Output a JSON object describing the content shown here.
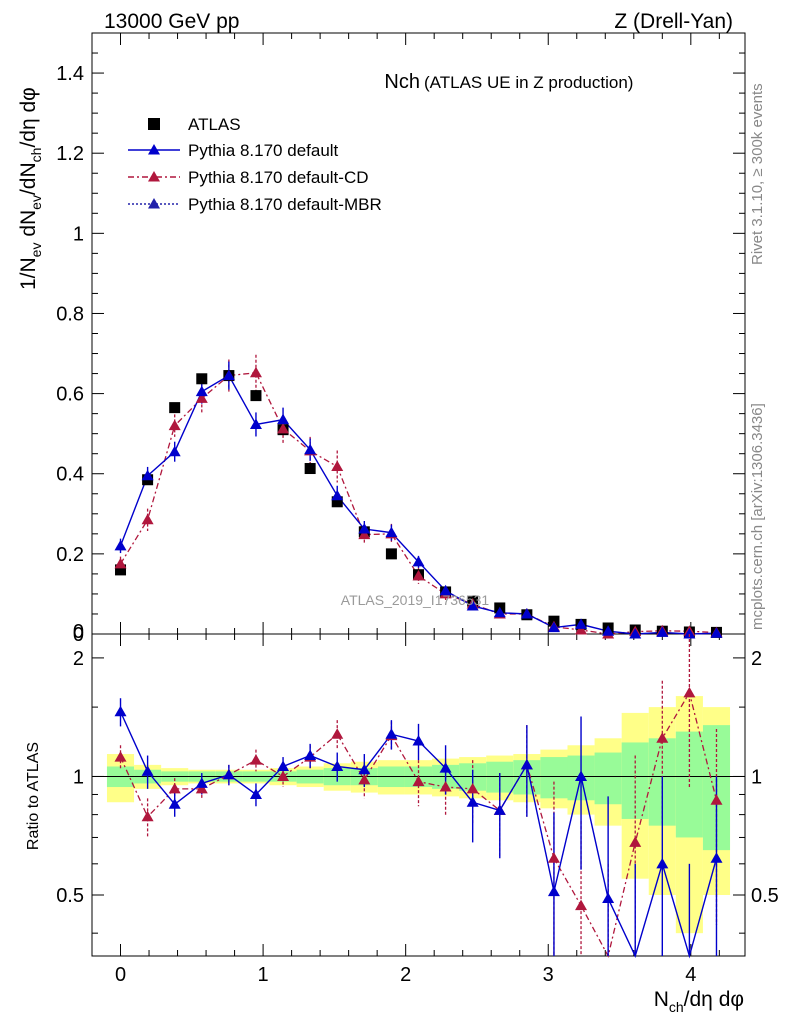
{
  "header": {
    "energy": "13000 GeV pp",
    "process": "Z (Drell-Yan)"
  },
  "side_text": {
    "rivet": "Rivet 3.1.10, ≥ 300k events",
    "mcplots": "mcplots.cern.ch [arXiv:1306.3436]"
  },
  "chart_data": {
    "type": "scatter",
    "title_main": "Nch",
    "title_sub": "(ATLAS UE in Z production)",
    "watermark": "ATLAS_2019_I1736531",
    "xlabel": "N_ch/dη dφ",
    "ylabel": "1/N_ev dN_ev/dN_ch/dη dφ",
    "xlim": [
      -0.2,
      4.38
    ],
    "ylim": [
      0,
      1.5
    ],
    "ratio_ylabel": "Ratio to ATLAS",
    "ratio_ylim": [
      0.35,
      2.3
    ],
    "main_ticks": [
      "0",
      "0.2",
      "0.4",
      "0.6",
      "0.8",
      "1",
      "1.2",
      "1.4"
    ],
    "ratio_ticks": [
      "0.5",
      "1",
      "2"
    ],
    "x_ticks": [
      "0",
      "1",
      "2",
      "3",
      "4"
    ],
    "x": [
      0,
      0.19,
      0.38,
      0.57,
      0.76,
      0.95,
      1.14,
      1.33,
      1.52,
      1.71,
      1.9,
      2.09,
      2.28,
      2.47,
      2.66,
      2.85,
      3.04,
      3.23,
      3.42,
      3.61,
      3.8,
      3.99,
      4.18
    ],
    "series": [
      {
        "name": "ATLAS",
        "marker": "square",
        "color": "#000000",
        "values": [
          0.16,
          0.385,
          0.565,
          0.637,
          0.645,
          0.595,
          0.51,
          0.413,
          0.33,
          0.255,
          0.2,
          0.148,
          0.105,
          0.082,
          0.065,
          0.048,
          0.032,
          0.024,
          0.015,
          0.01,
          0.007,
          0.005,
          0.004
        ]
      },
      {
        "name": "Pythia 8.170 default",
        "marker": "triangle",
        "line": "solid",
        "color": "#0000cc",
        "values": [
          0.22,
          0.395,
          0.455,
          0.605,
          0.645,
          0.523,
          0.535,
          0.46,
          0.345,
          0.262,
          0.253,
          0.18,
          0.108,
          0.07,
          0.053,
          0.05,
          0.016,
          0.024,
          0.007,
          0.0,
          0.004,
          0.0,
          0.002
        ],
        "errors": [
          0.018,
          0.022,
          0.025,
          0.03,
          0.035,
          0.03,
          0.03,
          0.028,
          0.025,
          0.02,
          0.02,
          0.015,
          0.01,
          0.008,
          0.007,
          0.006,
          0.005,
          0.005,
          0.004,
          0.003,
          0.003,
          0.003,
          0.002
        ]
      },
      {
        "name": "Pythia 8.170 default-CD",
        "marker": "triangle",
        "line": "dashdot",
        "color": "#b0173d",
        "values": [
          0.175,
          0.285,
          0.52,
          0.588,
          0.645,
          0.652,
          0.512,
          0.457,
          0.418,
          0.248,
          0.25,
          0.145,
          0.1,
          0.075,
          0.05,
          0.05,
          0.018,
          0.01,
          0.0,
          0.006,
          0.008,
          0.007,
          0.0035
        ],
        "errors": [
          0.018,
          0.028,
          0.028,
          0.035,
          0.04,
          0.045,
          0.035,
          0.035,
          0.04,
          0.025,
          0.025,
          0.02,
          0.015,
          0.012,
          0.01,
          0.008,
          0.008,
          0.006,
          0.005,
          0.005,
          0.004,
          0.004,
          0.002
        ]
      },
      {
        "name": "Pythia 8.170 default-MBR",
        "marker": "triangle",
        "line": "dotted",
        "color": "#2222aa",
        "values": []
      }
    ],
    "ratio_series": [
      {
        "name": "Pythia 8.170 default",
        "values": [
          1.46,
          1.03,
          0.85,
          0.96,
          1.01,
          0.9,
          1.06,
          1.13,
          1.06,
          1.04,
          1.28,
          1.23,
          1.05,
          0.86,
          0.82,
          1.07,
          0.51,
          1.0,
          0.49,
          0.3,
          0.6,
          0.3,
          0.62
        ],
        "errors": [
          0.12,
          0.1,
          0.06,
          0.06,
          0.06,
          0.06,
          0.06,
          0.08,
          0.09,
          0.1,
          0.11,
          0.13,
          0.15,
          0.18,
          0.2,
          0.28,
          0.3,
          0.42,
          0.4,
          0.3,
          0.4,
          0.3,
          0.38
        ]
      },
      {
        "name": "Pythia 8.170 default-CD",
        "values": [
          1.12,
          0.79,
          0.93,
          0.93,
          1.01,
          1.1,
          1.0,
          1.12,
          1.28,
          0.98,
          1.27,
          0.97,
          0.94,
          0.93,
          0.82,
          1.07,
          0.62,
          0.47,
          0.3,
          0.68,
          1.25,
          1.63,
          0.87
        ],
        "errors": [
          0.08,
          0.09,
          0.06,
          0.05,
          0.06,
          0.07,
          0.06,
          0.08,
          0.11,
          0.1,
          0.11,
          0.13,
          0.15,
          0.17,
          0.2,
          0.28,
          0.35,
          0.3,
          0.3,
          0.45,
          0.5,
          0.7,
          0.45
        ]
      }
    ],
    "ratio_band_inner": [
      0.06,
      0.04,
      0.03,
      0.03,
      0.03,
      0.03,
      0.03,
      0.04,
      0.05,
      0.05,
      0.06,
      0.06,
      0.07,
      0.08,
      0.09,
      0.1,
      0.12,
      0.13,
      0.15,
      0.22,
      0.25,
      0.3,
      0.35
    ],
    "ratio_band_outer": [
      0.14,
      0.07,
      0.05,
      0.04,
      0.04,
      0.04,
      0.05,
      0.06,
      0.08,
      0.09,
      0.1,
      0.1,
      0.11,
      0.12,
      0.13,
      0.14,
      0.17,
      0.2,
      0.25,
      0.45,
      0.5,
      0.6,
      0.5
    ]
  },
  "colors": {
    "band_inner": "#98fb98",
    "band_outer": "#ffff88"
  }
}
